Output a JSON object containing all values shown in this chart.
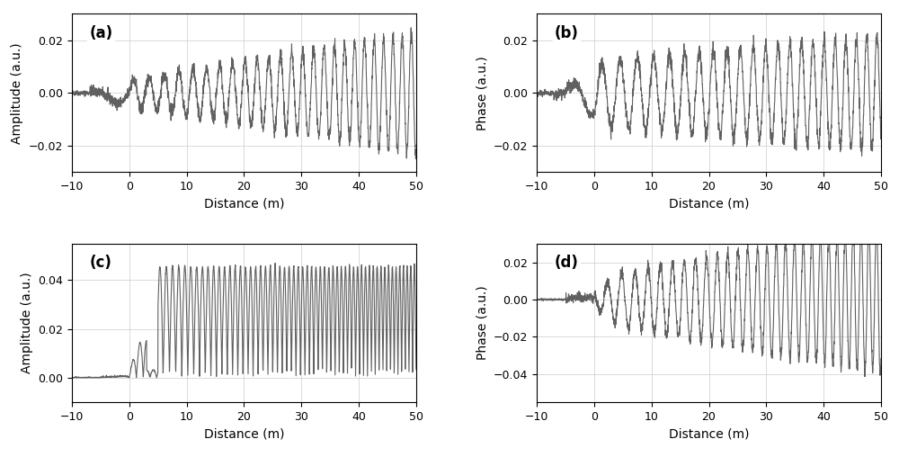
{
  "fig_width": 10.0,
  "fig_height": 5.08,
  "dpi": 100,
  "xlim": [
    -10,
    50
  ],
  "xticks": [
    -10,
    0,
    10,
    20,
    30,
    40,
    50
  ],
  "xlabel": "Distance (m)",
  "ylim_a": [
    -0.03,
    0.03
  ],
  "yticks_a": [
    -0.02,
    0,
    0.02
  ],
  "ylabel_a": "Amplitude (a.u.)",
  "ylim_b": [
    -0.03,
    0.03
  ],
  "yticks_b": [
    -0.02,
    0,
    0.02
  ],
  "ylabel_b": "Phase (a.u.)",
  "ylim_c": [
    -0.01,
    0.055
  ],
  "yticks_c": [
    0,
    0.02,
    0.04
  ],
  "ylabel_c": "Amplitude (a.u.)",
  "ylim_d": [
    -0.055,
    0.03
  ],
  "yticks_d": [
    -0.04,
    -0.02,
    0,
    0.02
  ],
  "ylabel_d": "Phase (a.u.)",
  "label_a": "(a)",
  "label_b": "(b)",
  "label_c": "(c)",
  "label_d": "(d)",
  "line_color": "#606060",
  "line_width": 0.8,
  "grid_color": "#cccccc",
  "bg_color": "#ffffff",
  "tick_labelsize": 9,
  "axis_labelsize": 10,
  "panel_labelsize": 12
}
